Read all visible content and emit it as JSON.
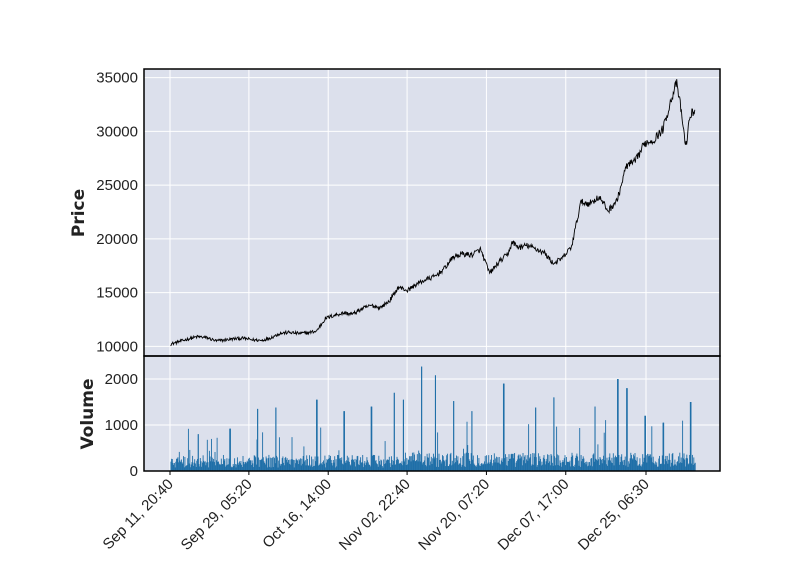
{
  "chart_data": {
    "type": "line",
    "colors": {
      "panel_bg": "#dce0ec",
      "grid": "#ffffff",
      "price_line": "#000000",
      "volume_bar": "#1f6fa8",
      "frame": "#000000"
    },
    "grid": true,
    "x_range": [
      "Sep 08",
      "Jan 02"
    ],
    "x_ticks": [
      "Sep 11, 20:40",
      "Sep 29, 05:20",
      "Oct 16, 14:00",
      "Nov 02, 22:40",
      "Nov 20, 07:20",
      "Dec 07, 17:00",
      "Dec 25, 06:30"
    ],
    "x_tick_days": [
      3.9,
      21.2,
      38.6,
      55.9,
      73.3,
      90.7,
      108.3
    ],
    "price_panel": {
      "ylabel": "Price",
      "ylim": [
        9100,
        35800
      ],
      "yticks": [
        10000,
        15000,
        20000,
        25000,
        30000,
        35000
      ],
      "ytick_labels": [
        "10000",
        "15000",
        "20000",
        "25000",
        "30000",
        "35000"
      ],
      "series": [
        {
          "x_days": [
            4,
            6,
            8,
            10,
            12,
            14,
            16,
            18,
            20,
            22,
            24,
            26,
            28,
            30,
            32,
            34,
            36,
            38,
            40,
            42,
            44,
            46,
            48,
            50,
            52,
            54,
            56,
            58,
            60,
            62,
            64,
            66,
            68,
            70,
            72,
            74,
            76,
            78,
            79,
            80,
            81,
            82,
            84,
            86,
            88,
            90,
            92,
            94,
            96,
            98,
            100,
            102,
            104,
            106,
            108,
            110,
            112,
            114,
            115,
            116,
            117,
            118,
            119
          ],
          "values": [
            10200,
            10450,
            10700,
            10900,
            10800,
            10500,
            10600,
            10700,
            10750,
            10600,
            10550,
            10800,
            11200,
            11300,
            11200,
            11250,
            11400,
            12600,
            12900,
            13100,
            13000,
            13500,
            13800,
            13600,
            14200,
            15500,
            15200,
            15800,
            16200,
            16500,
            17200,
            18300,
            18600,
            18500,
            19000,
            16800,
            17800,
            18600,
            19700,
            19300,
            19200,
            19400,
            19100,
            18700,
            17700,
            18200,
            19300,
            23400,
            23300,
            23900,
            22600,
            23600,
            26800,
            27200,
            28900,
            29200,
            30200,
            33200,
            34500,
            32000,
            28500,
            31500,
            32000
          ]
        }
      ]
    },
    "volume_panel": {
      "ylabel": "Volume",
      "ylim": [
        0,
        2500
      ],
      "yticks": [
        0,
        1000,
        2000
      ],
      "ytick_labels": [
        "0",
        "1000",
        "2000"
      ],
      "typical_level": 250,
      "spikes": [
        {
          "day": 10,
          "value": 800
        },
        {
          "day": 17,
          "value": 920
        },
        {
          "day": 23,
          "value": 1350
        },
        {
          "day": 27,
          "value": 1380
        },
        {
          "day": 36,
          "value": 1550
        },
        {
          "day": 42,
          "value": 1300
        },
        {
          "day": 48,
          "value": 1400
        },
        {
          "day": 53,
          "value": 1700
        },
        {
          "day": 55,
          "value": 1550
        },
        {
          "day": 59,
          "value": 2270
        },
        {
          "day": 62,
          "value": 2080
        },
        {
          "day": 66,
          "value": 1520
        },
        {
          "day": 70,
          "value": 1300
        },
        {
          "day": 77,
          "value": 1900
        },
        {
          "day": 84,
          "value": 1380
        },
        {
          "day": 88,
          "value": 1600
        },
        {
          "day": 97,
          "value": 1400
        },
        {
          "day": 102,
          "value": 2000
        },
        {
          "day": 104,
          "value": 1800
        },
        {
          "day": 108,
          "value": 1200
        },
        {
          "day": 112,
          "value": 1050
        },
        {
          "day": 118,
          "value": 1500
        }
      ]
    }
  }
}
